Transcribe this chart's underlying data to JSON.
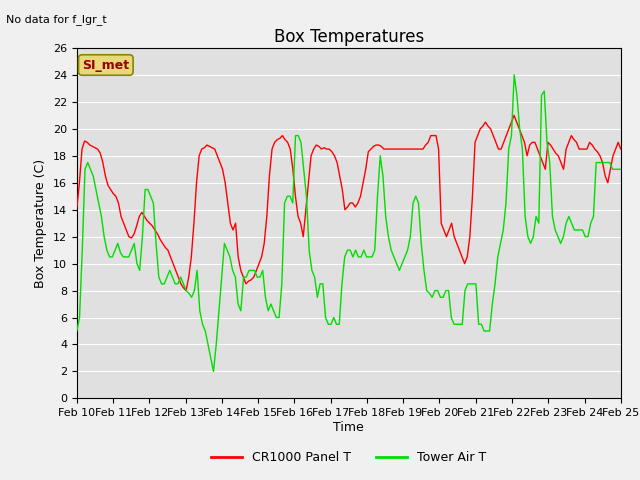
{
  "title": "Box Temperatures",
  "ylabel": "Box Temperature (C)",
  "xlabel": "Time",
  "ylim": [
    0,
    26
  ],
  "yticks": [
    0,
    2,
    4,
    6,
    8,
    10,
    12,
    14,
    16,
    18,
    20,
    22,
    24,
    26
  ],
  "xtick_labels": [
    "Feb 10",
    "Feb 11",
    "Feb 12",
    "Feb 13",
    "Feb 14",
    "Feb 15",
    "Feb 16",
    "Feb 17",
    "Feb 18",
    "Feb 19",
    "Feb 20",
    "Feb 21",
    "Feb 22",
    "Feb 23",
    "Feb 24",
    "Feb 25"
  ],
  "note_text": "No data for f_lgr_t",
  "annotation_text": "SI_met",
  "annotation_box_facecolor": "#e8d87a",
  "annotation_text_color": "#990000",
  "line1_color": "#ff0000",
  "line2_color": "#00dd00",
  "legend1_label": "CR1000 Panel T",
  "legend2_label": "Tower Air T",
  "fig_bg_color": "#f0f0f0",
  "plot_bg_color": "#e0e0e0",
  "grid_color": "#ffffff",
  "title_fontsize": 12,
  "label_fontsize": 9,
  "tick_fontsize": 8,
  "red_data": [
    14.1,
    16.0,
    18.5,
    19.1,
    19.0,
    18.8,
    18.7,
    18.6,
    18.5,
    18.2,
    17.5,
    16.5,
    15.8,
    15.5,
    15.2,
    15.0,
    14.5,
    13.5,
    13.0,
    12.5,
    12.0,
    11.9,
    12.2,
    12.8,
    13.5,
    13.8,
    13.5,
    13.2,
    13.0,
    12.8,
    12.5,
    12.2,
    11.8,
    11.5,
    11.2,
    11.0,
    10.5,
    10.0,
    9.5,
    9.0,
    8.5,
    8.2,
    8.0,
    9.0,
    10.5,
    13.0,
    16.0,
    18.0,
    18.5,
    18.6,
    18.8,
    18.7,
    18.6,
    18.5,
    18.0,
    17.5,
    17.0,
    16.0,
    14.5,
    13.0,
    12.5,
    13.0,
    10.5,
    9.5,
    9.0,
    8.5,
    8.7,
    8.8,
    9.0,
    9.5,
    10.0,
    10.5,
    11.5,
    13.5,
    16.5,
    18.5,
    19.0,
    19.2,
    19.3,
    19.5,
    19.2,
    19.0,
    18.5,
    17.0,
    15.0,
    13.5,
    13.0,
    12.0,
    14.0,
    16.0,
    18.0,
    18.5,
    18.8,
    18.7,
    18.5,
    18.6,
    18.5,
    18.5,
    18.3,
    18.0,
    17.5,
    16.5,
    15.5,
    14.0,
    14.2,
    14.5,
    14.5,
    14.2,
    14.5,
    15.0,
    16.0,
    17.0,
    18.3,
    18.5,
    18.7,
    18.8,
    18.8,
    18.7,
    18.5,
    18.5,
    18.5,
    18.5,
    18.5,
    18.5,
    18.5,
    18.5,
    18.5,
    18.5,
    18.5,
    18.5,
    18.5,
    18.5,
    18.5,
    18.5,
    18.8,
    19.0,
    19.5,
    19.5,
    19.5,
    18.5,
    13.0,
    12.5,
    12.0,
    12.5,
    13.0,
    12.0,
    11.5,
    11.0,
    10.5,
    10.0,
    10.5,
    12.0,
    15.0,
    19.0,
    19.5,
    20.0,
    20.2,
    20.5,
    20.2,
    20.0,
    19.5,
    19.0,
    18.5,
    18.5,
    19.0,
    19.5,
    20.0,
    20.5,
    21.0,
    20.5,
    20.0,
    19.5,
    19.0,
    18.0,
    18.8,
    19.0,
    19.0,
    18.5,
    18.0,
    17.5,
    17.0,
    19.0,
    18.8,
    18.5,
    18.2,
    18.0,
    17.5,
    17.0,
    18.5,
    19.0,
    19.5,
    19.2,
    19.0,
    18.5,
    18.5,
    18.5,
    18.5,
    19.0,
    18.8,
    18.5,
    18.3,
    18.0,
    17.5,
    16.5,
    16.0,
    17.0,
    18.0,
    18.5,
    19.0,
    18.5
  ],
  "green_data": [
    5.0,
    6.0,
    11.0,
    17.0,
    17.5,
    17.0,
    16.5,
    15.5,
    14.5,
    13.5,
    12.0,
    11.0,
    10.5,
    10.5,
    11.0,
    11.5,
    10.8,
    10.5,
    10.5,
    10.5,
    11.0,
    11.5,
    10.0,
    9.5,
    12.0,
    15.5,
    15.5,
    15.0,
    14.5,
    11.5,
    9.0,
    8.5,
    8.5,
    9.0,
    9.5,
    9.0,
    8.5,
    8.5,
    9.0,
    8.5,
    8.0,
    7.8,
    7.5,
    8.0,
    9.5,
    6.5,
    5.5,
    5.0,
    4.0,
    3.0,
    2.0,
    4.0,
    6.5,
    9.0,
    11.5,
    11.0,
    10.5,
    9.5,
    9.0,
    7.0,
    6.5,
    9.0,
    9.0,
    9.5,
    9.5,
    9.5,
    9.0,
    9.0,
    9.5,
    7.5,
    6.5,
    7.0,
    6.5,
    6.0,
    6.0,
    8.5,
    14.5,
    15.0,
    15.0,
    14.5,
    19.5,
    19.5,
    19.0,
    17.0,
    15.0,
    11.0,
    9.5,
    9.0,
    7.5,
    8.5,
    8.5,
    6.0,
    5.5,
    5.5,
    6.0,
    5.5,
    5.5,
    8.5,
    10.5,
    11.0,
    11.0,
    10.5,
    11.0,
    10.5,
    10.5,
    11.0,
    10.5,
    10.5,
    10.5,
    11.0,
    15.0,
    18.0,
    16.5,
    13.5,
    12.0,
    11.0,
    10.5,
    10.0,
    9.5,
    10.0,
    10.5,
    11.0,
    12.0,
    14.5,
    15.0,
    14.5,
    11.5,
    9.5,
    8.0,
    7.8,
    7.5,
    8.0,
    8.0,
    7.5,
    7.5,
    8.0,
    8.0,
    6.0,
    5.5,
    5.5,
    5.5,
    5.5,
    8.0,
    8.5,
    8.5,
    8.5,
    8.5,
    5.5,
    5.5,
    5.0,
    5.0,
    5.0,
    7.0,
    8.5,
    10.5,
    11.5,
    12.5,
    14.5,
    18.5,
    19.5,
    24.0,
    22.5,
    20.0,
    18.5,
    13.5,
    12.0,
    11.5,
    12.0,
    13.5,
    13.0,
    22.5,
    22.8,
    19.0,
    17.5,
    13.5,
    12.5,
    12.0,
    11.5,
    12.0,
    13.0,
    13.5,
    13.0,
    12.5,
    12.5,
    12.5,
    12.5,
    12.0,
    12.0,
    13.0,
    13.5,
    17.5,
    17.5,
    17.5,
    17.5,
    17.5,
    17.5,
    17.0,
    17.0,
    17.0,
    17.0
  ]
}
